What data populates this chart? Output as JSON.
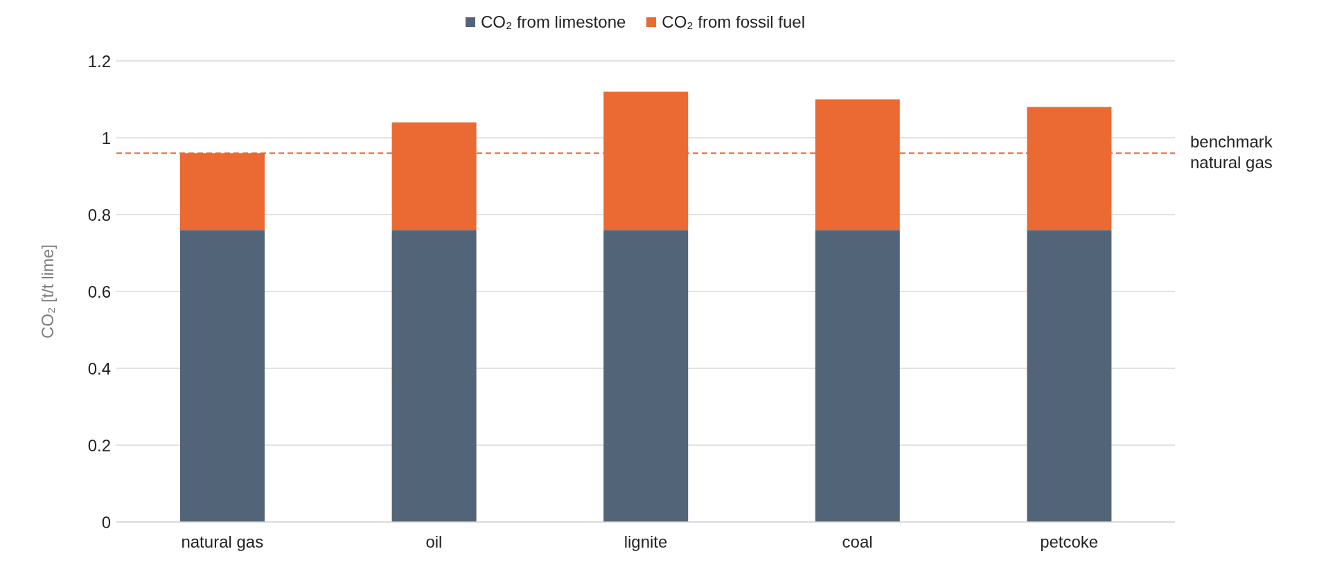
{
  "chart_data": {
    "type": "bar",
    "stacked": true,
    "ylabel": "CO₂ [t/t lime]",
    "categories": [
      "natural gas",
      "oil",
      "lignite",
      "coal",
      "petcoke"
    ],
    "series": [
      {
        "name": "CO₂ from limestone",
        "color": "#526477",
        "values": [
          0.76,
          0.76,
          0.76,
          0.76,
          0.76
        ]
      },
      {
        "name": "CO₂ from fossil fuel",
        "color": "#eb6a33",
        "values": [
          0.2,
          0.28,
          0.36,
          0.34,
          0.32
        ]
      }
    ],
    "ylim": [
      0,
      1.2
    ],
    "yticks": [
      0,
      0.2,
      0.4,
      0.6,
      0.8,
      1,
      1.2
    ],
    "grid": "y",
    "legend": "top",
    "ref_lines": [
      {
        "axis": "y",
        "value": 0.96,
        "label": "benchmark natural gas",
        "color": "#eb6a33",
        "line_style": "dashed"
      }
    ]
  }
}
